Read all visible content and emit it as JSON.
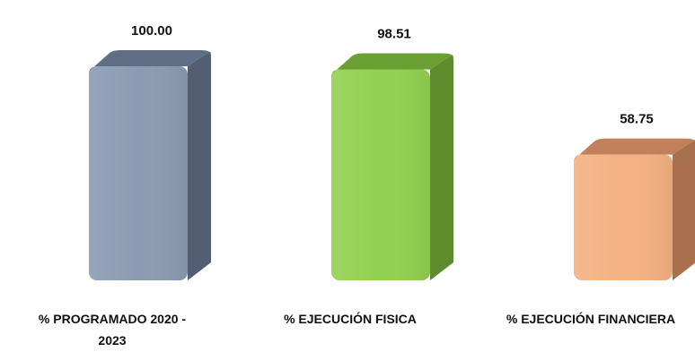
{
  "chart_data": {
    "type": "bar",
    "categories": [
      [
        "%  PROGRAMADO 2020 -",
        "2023"
      ],
      [
        "%  EJECUCIÓN FISICA"
      ],
      [
        "% EJECUCIÓN FINANCIERA"
      ]
    ],
    "values": [
      100.0,
      98.51,
      58.75
    ],
    "value_labels": [
      "100.00",
      "98.51",
      "58.75"
    ],
    "colors": [
      {
        "front": "#8a9bb3",
        "side": "#525f73",
        "top": "#5f6e85"
      },
      {
        "front": "#92d050",
        "side": "#5e8c2c",
        "top": "#6aa033"
      },
      {
        "front": "#f4b183",
        "side": "#a8704c",
        "top": "#c2805a"
      }
    ],
    "ylim": [
      0,
      100
    ],
    "grid": false,
    "legend": "none"
  }
}
